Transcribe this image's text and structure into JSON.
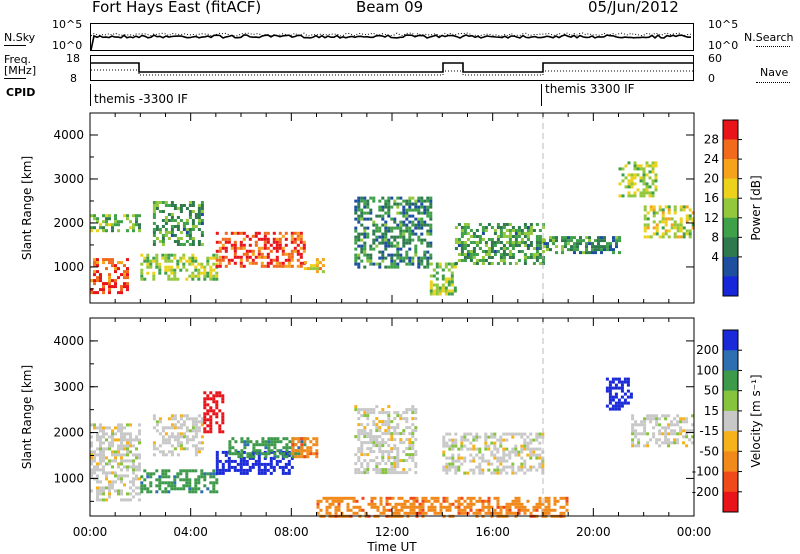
{
  "header": {
    "radar": "Fort Hays East (fitACF)",
    "beam": "Beam 09",
    "date": "05/Jun/2012"
  },
  "top_panels": {
    "nsky_label": "N.Sky",
    "nsearch_label": "N.Search",
    "nsky_ticks": [
      "10^5",
      "10^0"
    ],
    "nsearch_ticks": [
      "10^5",
      "10^0"
    ],
    "freq_label_line1": "Freq.",
    "freq_label_line2": "[MHz]",
    "freq_ticks": [
      "18",
      "8"
    ],
    "nave_label": "Nave",
    "nave_ticks": [
      "60",
      "0"
    ],
    "cpid_label": "CPID",
    "cpid_segments": [
      "themis -3300 IF",
      "themis 3300 IF"
    ]
  },
  "chart_data": [
    {
      "type": "heatmap",
      "panel": "power",
      "ylabel": "Slant Range [km]",
      "xlim": [
        0,
        24
      ],
      "ylim": [
        180,
        4500
      ],
      "yticks": [
        "1000",
        "2000",
        "3000",
        "4000"
      ],
      "colorbar": {
        "label": "Power [dB]",
        "ticks": [
          "28",
          "24",
          "20",
          "16",
          "12",
          "8",
          "4"
        ],
        "colors": [
          "#e8141a",
          "#f26a1b",
          "#f7a21b",
          "#ecd21a",
          "#93c83d",
          "#3fa04a",
          "#2f7a4d",
          "#1d4f9e",
          "#1726d8"
        ]
      },
      "echo_regions": [
        {
          "t0": 0.0,
          "t1": 1.5,
          "r0": 400,
          "r1": 1200,
          "level": 26
        },
        {
          "t0": 0.0,
          "t1": 2.0,
          "r0": 1800,
          "r1": 2200,
          "level": 12
        },
        {
          "t0": 2.0,
          "t1": 5.0,
          "r0": 700,
          "r1": 1300,
          "level": 14
        },
        {
          "t0": 2.5,
          "t1": 4.5,
          "r0": 1500,
          "r1": 2500,
          "level": 10
        },
        {
          "t0": 5.0,
          "t1": 8.5,
          "r0": 1000,
          "r1": 1800,
          "level": 26
        },
        {
          "t0": 8.5,
          "t1": 9.3,
          "r0": 900,
          "r1": 1200,
          "level": 18
        },
        {
          "t0": 10.5,
          "t1": 13.5,
          "r0": 1000,
          "r1": 2600,
          "level": 8
        },
        {
          "t0": 13.5,
          "t1": 14.5,
          "r0": 400,
          "r1": 1100,
          "level": 14
        },
        {
          "t0": 14.5,
          "t1": 18.0,
          "r0": 1100,
          "r1": 2000,
          "level": 10
        },
        {
          "t0": 18.0,
          "t1": 21.0,
          "r0": 1300,
          "r1": 1700,
          "level": 8
        },
        {
          "t0": 21.0,
          "t1": 22.5,
          "r0": 2600,
          "r1": 3400,
          "level": 14
        },
        {
          "t0": 22.0,
          "t1": 24.0,
          "r0": 1700,
          "r1": 2400,
          "level": 16
        }
      ]
    },
    {
      "type": "heatmap",
      "panel": "velocity",
      "ylabel": "Slant Range [km]",
      "xlabel": "Time UT",
      "xlim": [
        0,
        24
      ],
      "ylim": [
        180,
        4500
      ],
      "xticks": [
        "00:00",
        "04:00",
        "08:00",
        "12:00",
        "16:00",
        "20:00",
        "00:00"
      ],
      "yticks": [
        "1000",
        "2000",
        "3000",
        "4000"
      ],
      "colorbar": {
        "label": "Velocity [m s⁻¹]",
        "ticks": [
          "200",
          "100",
          "50",
          "15",
          "-15",
          "-50",
          "-100",
          "-200"
        ],
        "colors": [
          "#1a2ad8",
          "#2d6fb0",
          "#3d9a4a",
          "#86c43e",
          "#c8c8c8",
          "#f5b21b",
          "#f28a1b",
          "#f04a1a",
          "#e8141a"
        ]
      },
      "echo_regions": [
        {
          "t0": 0.0,
          "t1": 2.0,
          "r0": 500,
          "r1": 2200,
          "vel": 0
        },
        {
          "t0": 2.0,
          "t1": 5.0,
          "r0": 700,
          "r1": 1200,
          "vel": 60
        },
        {
          "t0": 2.5,
          "t1": 4.5,
          "r0": 1500,
          "r1": 2400,
          "vel": 0
        },
        {
          "t0": 4.5,
          "t1": 5.3,
          "r0": 2000,
          "r1": 2900,
          "vel": -200
        },
        {
          "t0": 5.0,
          "t1": 8.0,
          "r0": 1100,
          "r1": 1600,
          "vel": 200
        },
        {
          "t0": 5.5,
          "t1": 8.5,
          "r0": 1500,
          "r1": 1900,
          "vel": 60
        },
        {
          "t0": 8.0,
          "t1": 9.0,
          "r0": 1500,
          "r1": 1900,
          "vel": -60
        },
        {
          "t0": 10.5,
          "t1": 13.0,
          "r0": 1100,
          "r1": 2600,
          "vel": 0
        },
        {
          "t0": 9.0,
          "t1": 19.0,
          "r0": 200,
          "r1": 600,
          "vel": -60
        },
        {
          "t0": 14.0,
          "t1": 18.0,
          "r0": 1100,
          "r1": 2000,
          "vel": 0
        },
        {
          "t0": 20.5,
          "t1": 21.5,
          "r0": 2500,
          "r1": 3200,
          "vel": 200
        },
        {
          "t0": 21.5,
          "t1": 24.0,
          "r0": 1700,
          "r1": 2400,
          "vel": 0
        }
      ]
    }
  ]
}
